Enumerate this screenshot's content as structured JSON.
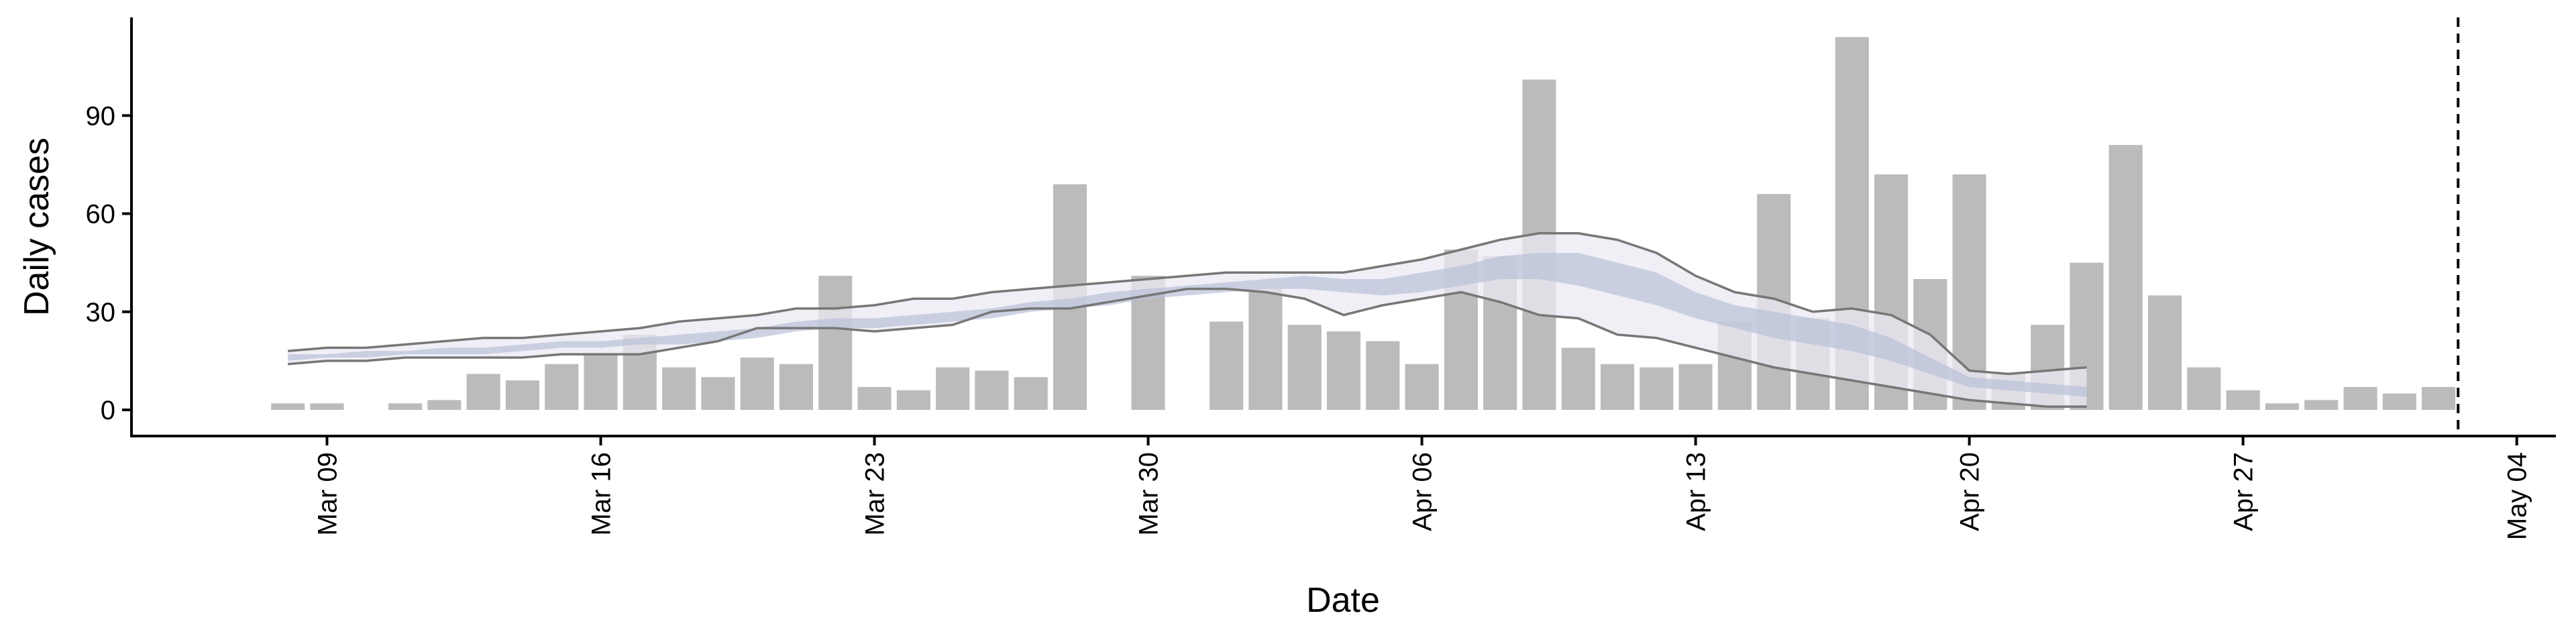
{
  "chart_data": {
    "type": "bar",
    "xlabel": "Date",
    "ylabel": "Daily cases",
    "ylim": [
      -8,
      120
    ],
    "y_ticks": [
      0,
      30,
      60,
      90
    ],
    "x_ticks": [
      {
        "date": "2020-03-09",
        "label": "Mar 09"
      },
      {
        "date": "2020-03-16",
        "label": "Mar 16"
      },
      {
        "date": "2020-03-23",
        "label": "Mar 23"
      },
      {
        "date": "2020-03-30",
        "label": "Mar 30"
      },
      {
        "date": "2020-04-06",
        "label": "Apr 06"
      },
      {
        "date": "2020-04-13",
        "label": "Apr 13"
      },
      {
        "date": "2020-04-20",
        "label": "Apr 20"
      },
      {
        "date": "2020-04-27",
        "label": "Apr 27"
      },
      {
        "date": "2020-05-04",
        "label": "May 04"
      }
    ],
    "xlim": [
      "2020-03-04",
      "2020-05-05"
    ],
    "grid": false,
    "legend": "none",
    "daily_cases": {
      "dates": [
        "2020-03-08",
        "2020-03-09",
        "2020-03-10",
        "2020-03-11",
        "2020-03-12",
        "2020-03-13",
        "2020-03-14",
        "2020-03-15",
        "2020-03-16",
        "2020-03-17",
        "2020-03-18",
        "2020-03-19",
        "2020-03-20",
        "2020-03-21",
        "2020-03-22",
        "2020-03-23",
        "2020-03-24",
        "2020-03-25",
        "2020-03-26",
        "2020-03-27",
        "2020-03-28",
        "2020-03-29",
        "2020-03-30",
        "2020-03-31",
        "2020-04-01",
        "2020-04-02",
        "2020-04-03",
        "2020-04-04",
        "2020-04-05",
        "2020-04-06",
        "2020-04-07",
        "2020-04-08",
        "2020-04-09",
        "2020-04-10",
        "2020-04-11",
        "2020-04-12",
        "2020-04-13",
        "2020-04-14",
        "2020-04-15",
        "2020-04-16",
        "2020-04-17",
        "2020-04-18",
        "2020-04-19",
        "2020-04-20",
        "2020-04-21",
        "2020-04-22",
        "2020-04-23",
        "2020-04-24",
        "2020-04-25",
        "2020-04-26",
        "2020-04-27",
        "2020-04-28",
        "2020-04-29",
        "2020-04-30",
        "2020-05-01",
        "2020-05-02"
      ],
      "values": [
        2,
        2,
        0,
        2,
        3,
        11,
        9,
        14,
        17,
        23,
        13,
        10,
        16,
        14,
        41,
        7,
        6,
        13,
        12,
        10,
        69,
        0,
        41,
        0,
        27,
        37,
        26,
        24,
        21,
        14,
        49,
        47,
        101,
        19,
        14,
        13,
        14,
        27,
        66,
        28,
        114,
        72,
        40,
        72,
        11,
        26,
        45,
        81,
        35,
        13,
        6,
        2,
        3,
        7,
        5,
        7
      ]
    },
    "estimate": {
      "dates": [
        "2020-03-08",
        "2020-03-09",
        "2020-03-10",
        "2020-03-11",
        "2020-03-12",
        "2020-03-13",
        "2020-03-14",
        "2020-03-15",
        "2020-03-16",
        "2020-03-17",
        "2020-03-18",
        "2020-03-19",
        "2020-03-20",
        "2020-03-21",
        "2020-03-22",
        "2020-03-23",
        "2020-03-24",
        "2020-03-25",
        "2020-03-26",
        "2020-03-27",
        "2020-03-28",
        "2020-03-29",
        "2020-03-30",
        "2020-03-31",
        "2020-04-01",
        "2020-04-02",
        "2020-04-03",
        "2020-04-04",
        "2020-04-05",
        "2020-04-06",
        "2020-04-07",
        "2020-04-08",
        "2020-04-09",
        "2020-04-10",
        "2020-04-11",
        "2020-04-12",
        "2020-04-13",
        "2020-04-14",
        "2020-04-15",
        "2020-04-16",
        "2020-04-17",
        "2020-04-18",
        "2020-04-19",
        "2020-04-20",
        "2020-04-21",
        "2020-04-22",
        "2020-04-23"
      ],
      "upper": [
        18,
        19,
        19,
        20,
        21,
        22,
        22,
        23,
        24,
        25,
        27,
        28,
        29,
        31,
        31,
        32,
        34,
        34,
        36,
        37,
        38,
        39,
        40,
        41,
        42,
        42,
        42,
        42,
        44,
        46,
        49,
        52,
        54,
        54,
        52,
        48,
        41,
        36,
        34,
        30,
        31,
        29,
        23,
        12,
        11,
        12,
        13
      ],
      "inner_upper": [
        17,
        17,
        18,
        18,
        19,
        19,
        20,
        21,
        21,
        22,
        23,
        24,
        25,
        27,
        28,
        28,
        29,
        30,
        31,
        33,
        34,
        36,
        37,
        38,
        39,
        40,
        41,
        40,
        40,
        42,
        44,
        47,
        48,
        48,
        45,
        42,
        36,
        32,
        30,
        28,
        26,
        22,
        16,
        10,
        9,
        8,
        7
      ],
      "inner_lower": [
        15,
        16,
        16,
        17,
        17,
        17,
        18,
        19,
        19,
        20,
        20,
        21,
        22,
        24,
        25,
        25,
        26,
        27,
        28,
        30,
        31,
        32,
        34,
        35,
        36,
        37,
        37,
        36,
        35,
        36,
        38,
        40,
        40,
        38,
        35,
        32,
        28,
        25,
        22,
        20,
        18,
        15,
        11,
        7,
        6,
        5,
        4
      ],
      "lower": [
        14,
        15,
        15,
        16,
        16,
        16,
        16,
        17,
        17,
        17,
        19,
        21,
        25,
        25,
        25,
        24,
        25,
        26,
        30,
        31,
        31,
        33,
        35,
        37,
        37,
        36,
        34,
        29,
        32,
        34,
        36,
        33,
        29,
        28,
        23,
        22,
        19,
        16,
        13,
        11,
        9,
        7,
        5,
        3,
        2,
        1,
        1
      ]
    },
    "forecast_cutoff": "2020-05-02",
    "colors": {
      "bar": "#bbbbbb",
      "outer_band": "#e9e9f1",
      "inner_band": "#b9c1d8",
      "bound_line": "#777777",
      "axis": "#000000"
    }
  }
}
